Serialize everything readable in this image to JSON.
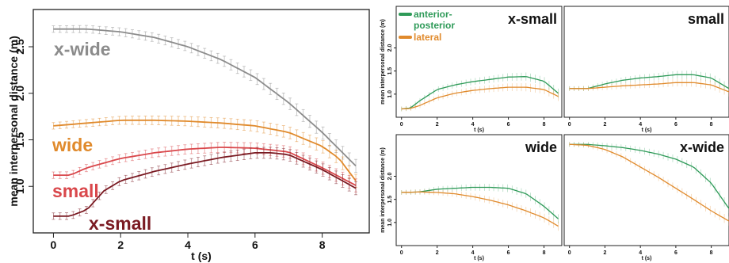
{
  "figure": {
    "left_panel": "A",
    "right_panels": "B"
  },
  "colors": {
    "xwide": "#8c8c8c",
    "wide": "#e08a2c",
    "small": "#d9474b",
    "xsmall": "#7a1a22",
    "ap": "#2e9a58",
    "lat": "#e08a2c"
  },
  "chart_data": [
    {
      "type": "line",
      "title": "",
      "xlabel": "t (s)",
      "ylabel": "mean interpersonal distance (m)",
      "xlim": [
        -0.6,
        9.4
      ],
      "ylim": [
        0.5,
        2.9
      ],
      "xticks": [
        "0",
        "2",
        "4",
        "6",
        "8"
      ],
      "yticks": [
        "1.0",
        "1.5",
        "2.0",
        "2.5"
      ],
      "error_bars": true,
      "series": [
        {
          "name": "x-wide",
          "color_key": "xwide",
          "x": [
            0,
            1,
            2,
            3,
            4,
            5,
            6,
            7,
            8,
            9
          ],
          "y": [
            2.69,
            2.69,
            2.66,
            2.6,
            2.5,
            2.36,
            2.17,
            1.9,
            1.58,
            1.22
          ]
        },
        {
          "name": "wide",
          "color_key": "wide",
          "x": [
            0,
            1,
            2,
            3,
            4,
            5,
            6,
            7,
            8,
            8.5,
            9
          ],
          "y": [
            1.65,
            1.68,
            1.71,
            1.71,
            1.7,
            1.68,
            1.65,
            1.58,
            1.43,
            1.3,
            1.06
          ]
        },
        {
          "name": "small",
          "color_key": "small",
          "x": [
            0,
            0.5,
            1,
            2,
            3,
            4,
            5,
            6,
            7,
            8,
            9
          ],
          "y": [
            1.12,
            1.12,
            1.2,
            1.3,
            1.36,
            1.4,
            1.42,
            1.41,
            1.37,
            1.2,
            1.01
          ]
        },
        {
          "name": "x-small",
          "color_key": "xsmall",
          "x": [
            0,
            0.5,
            1,
            1.5,
            2,
            3,
            4,
            5,
            6,
            6.5,
            7,
            8,
            9
          ],
          "y": [
            0.68,
            0.68,
            0.75,
            0.95,
            1.06,
            1.16,
            1.24,
            1.31,
            1.36,
            1.36,
            1.34,
            1.18,
            0.98
          ]
        }
      ]
    },
    {
      "type": "line",
      "title": "x-small",
      "xlabel": "t (s)",
      "ylabel": "mean interpersonal distance (m)",
      "xlim": [
        -0.3,
        9
      ],
      "ylim": [
        0.5,
        2.9
      ],
      "xticks": [
        "0",
        "2",
        "4",
        "6",
        "8"
      ],
      "yticks": [
        "1.0",
        "1.5",
        "2.0"
      ],
      "legend": [
        "anterior-posterior",
        "lateral"
      ],
      "series": [
        {
          "name": "anterior-posterior",
          "color_key": "ap",
          "x": [
            0,
            0.5,
            1,
            2,
            3,
            4,
            5,
            6,
            7,
            8,
            8.8
          ],
          "y": [
            0.68,
            0.7,
            0.85,
            1.1,
            1.2,
            1.27,
            1.32,
            1.37,
            1.38,
            1.28,
            1.02
          ]
        },
        {
          "name": "lateral",
          "color_key": "lat",
          "x": [
            0,
            0.5,
            1,
            2,
            3,
            4,
            5,
            6,
            7,
            8,
            8.8
          ],
          "y": [
            0.68,
            0.69,
            0.75,
            0.92,
            1.02,
            1.08,
            1.12,
            1.15,
            1.15,
            1.1,
            0.95
          ]
        }
      ]
    },
    {
      "type": "line",
      "title": "small",
      "xlabel": "t (s)",
      "ylabel": "",
      "xlim": [
        -0.3,
        9
      ],
      "ylim": [
        0.5,
        2.9
      ],
      "xticks": [
        "0",
        "2",
        "4",
        "6",
        "8"
      ],
      "yticks": [],
      "series": [
        {
          "name": "anterior-posterior",
          "color_key": "ap",
          "x": [
            0,
            1,
            2,
            3,
            4,
            5,
            6,
            7,
            8,
            9
          ],
          "y": [
            1.12,
            1.12,
            1.22,
            1.3,
            1.35,
            1.38,
            1.42,
            1.42,
            1.35,
            1.12
          ]
        },
        {
          "name": "lateral",
          "color_key": "lat",
          "x": [
            0,
            1,
            2,
            3,
            4,
            5,
            6,
            7,
            8,
            9
          ],
          "y": [
            1.12,
            1.12,
            1.15,
            1.18,
            1.2,
            1.22,
            1.25,
            1.25,
            1.2,
            1.05
          ]
        }
      ]
    },
    {
      "type": "line",
      "title": "wide",
      "xlabel": "t (s)",
      "ylabel": "mean interpersonal distance (m)",
      "xlim": [
        -0.3,
        9
      ],
      "ylim": [
        0.5,
        2.9
      ],
      "xticks": [
        "0",
        "2",
        "4",
        "6",
        "8"
      ],
      "yticks": [
        "1.0",
        "1.5",
        "2.0"
      ],
      "series": [
        {
          "name": "anterior-posterior",
          "color_key": "ap",
          "x": [
            0,
            1,
            2,
            3,
            4,
            5,
            6,
            7,
            8,
            8.8
          ],
          "y": [
            1.65,
            1.66,
            1.72,
            1.74,
            1.76,
            1.76,
            1.74,
            1.62,
            1.35,
            1.08
          ]
        },
        {
          "name": "lateral",
          "color_key": "lat",
          "x": [
            0,
            1,
            2,
            3,
            4,
            5,
            6,
            7,
            8,
            8.8
          ],
          "y": [
            1.65,
            1.66,
            1.65,
            1.62,
            1.56,
            1.48,
            1.38,
            1.25,
            1.1,
            0.92
          ]
        }
      ]
    },
    {
      "type": "line",
      "title": "x-wide",
      "xlabel": "t (s)",
      "ylabel": "",
      "xlim": [
        -0.3,
        9
      ],
      "ylim": [
        0.5,
        2.9
      ],
      "xticks": [
        "0",
        "2",
        "4",
        "6",
        "8"
      ],
      "yticks": [],
      "series": [
        {
          "name": "anterior-posterior",
          "color_key": "ap",
          "x": [
            0,
            1,
            2,
            3,
            4,
            5,
            6,
            7,
            8,
            9
          ],
          "y": [
            2.69,
            2.69,
            2.66,
            2.62,
            2.56,
            2.48,
            2.37,
            2.2,
            1.85,
            1.3
          ]
        },
        {
          "name": "lateral",
          "color_key": "lat",
          "x": [
            0,
            1,
            2,
            3,
            4,
            5,
            6,
            7,
            8,
            9
          ],
          "y": [
            2.69,
            2.67,
            2.58,
            2.42,
            2.2,
            1.98,
            1.74,
            1.5,
            1.25,
            1.03
          ]
        }
      ]
    }
  ]
}
